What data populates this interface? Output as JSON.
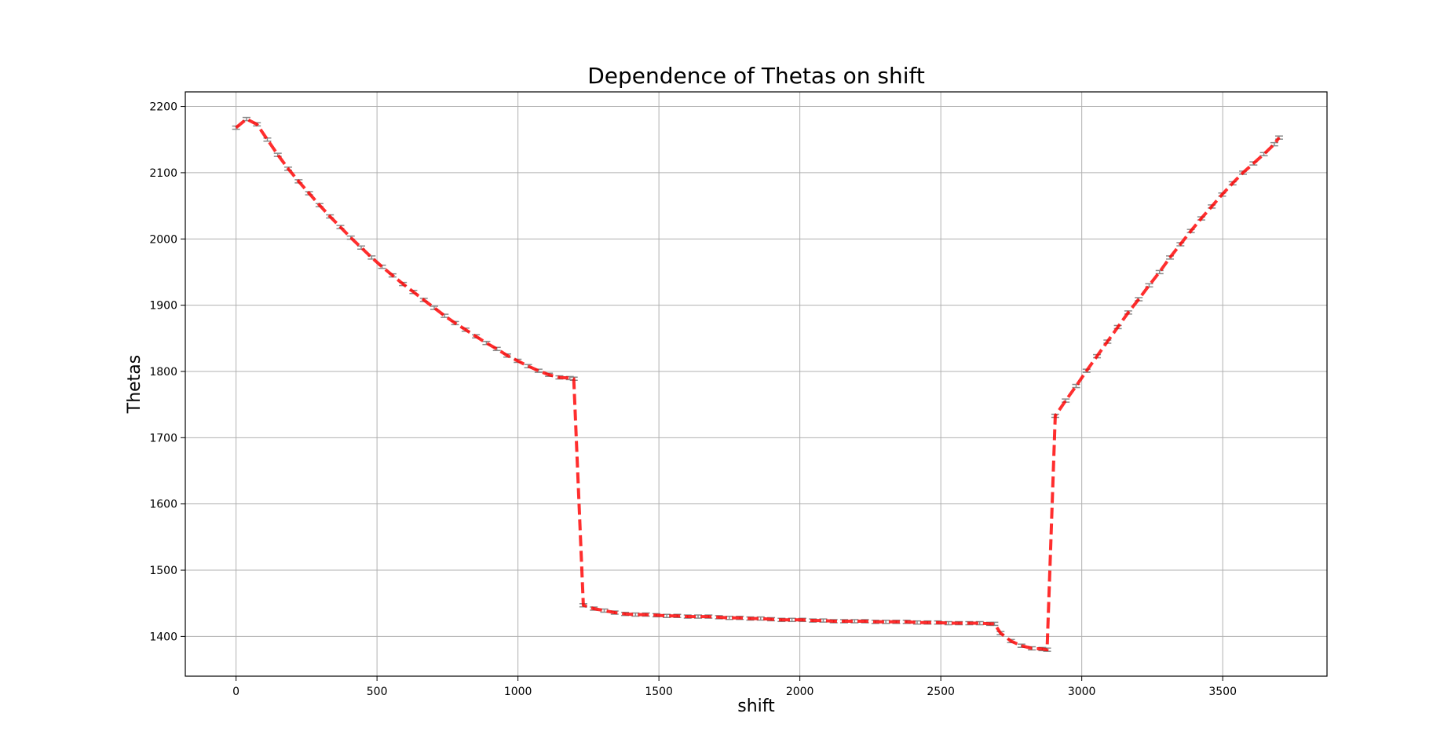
{
  "chart_data": {
    "type": "line",
    "title": "Dependence of Thetas on shift",
    "xlabel": "shift",
    "ylabel": "Thetas",
    "xlim": [
      -180,
      3870
    ],
    "ylim": [
      1340,
      2222
    ],
    "xticks": [
      0,
      500,
      1000,
      1500,
      2000,
      2500,
      3000,
      3500
    ],
    "yticks": [
      1400,
      1500,
      1600,
      1700,
      1800,
      1900,
      2000,
      2100,
      2200
    ],
    "grid": true,
    "error_bars": true,
    "series_color": "#ff0000",
    "errorbar_color": "#8a8a8a",
    "series": [
      {
        "x": [
          0,
          37,
          74,
          111,
          148,
          185,
          222,
          259,
          296,
          333,
          370,
          407,
          444,
          481,
          518,
          555,
          592,
          629,
          666,
          703,
          740,
          777,
          814,
          851,
          888,
          925,
          962,
          999,
          1036,
          1073,
          1110,
          1147,
          1184,
          1198,
          1232,
          1269,
          1306,
          1343,
          1380,
          1417,
          1454,
          1491,
          1528,
          1565,
          1602,
          1639,
          1676,
          1713,
          1750,
          1787,
          1824,
          1861,
          1898,
          1935,
          1972,
          2009,
          2046,
          2083,
          2120,
          2157,
          2194,
          2231,
          2268,
          2305,
          2342,
          2379,
          2416,
          2453,
          2490,
          2527,
          2564,
          2601,
          2638,
          2675,
          2690,
          2712,
          2749,
          2786,
          2823,
          2860,
          2877,
          2906,
          2943,
          2980,
          3017,
          3054,
          3091,
          3128,
          3165,
          3202,
          3239,
          3276,
          3313,
          3350,
          3387,
          3424,
          3461,
          3498,
          3535,
          3572,
          3609,
          3646,
          3683,
          3700
        ],
        "y": [
          2168,
          2181,
          2173,
          2150,
          2127,
          2106,
          2087,
          2069,
          2051,
          2034,
          2018,
          2002,
          1987,
          1972,
          1958,
          1945,
          1932,
          1920,
          1908,
          1896,
          1884,
          1873,
          1863,
          1853,
          1843,
          1834,
          1824,
          1816,
          1808,
          1801,
          1795,
          1791,
          1790,
          1789,
          1447,
          1442,
          1439,
          1436,
          1434,
          1433,
          1433,
          1432,
          1431,
          1431,
          1430,
          1430,
          1430,
          1429,
          1428,
          1428,
          1427,
          1427,
          1426,
          1425,
          1425,
          1425,
          1424,
          1424,
          1423,
          1423,
          1423,
          1423,
          1422,
          1422,
          1422,
          1422,
          1421,
          1421,
          1421,
          1420,
          1420,
          1420,
          1420,
          1419,
          1419,
          1405,
          1393,
          1386,
          1382,
          1381,
          1380,
          1733,
          1756,
          1778,
          1801,
          1823,
          1845,
          1867,
          1889,
          1909,
          1930,
          1950,
          1972,
          1992,
          2012,
          2031,
          2049,
          2067,
          2084,
          2100,
          2114,
          2128,
          2143,
          2153
        ]
      }
    ]
  }
}
